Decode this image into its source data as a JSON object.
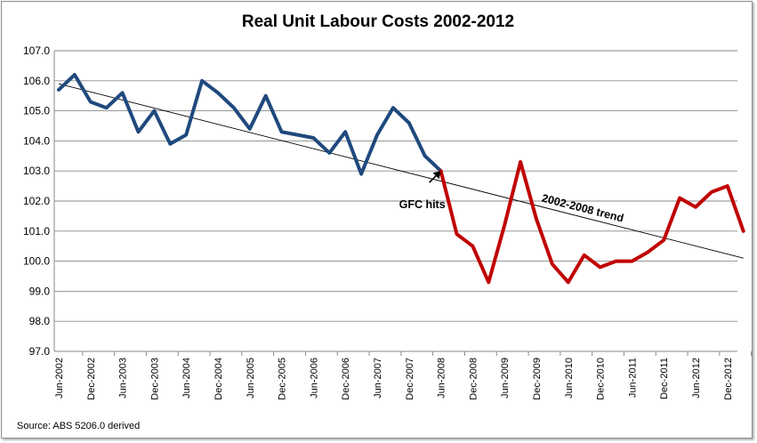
{
  "chart_data": {
    "type": "line",
    "title": "Real Unit Labour Costs 2002-2012",
    "xlabel": "",
    "ylabel": "",
    "ylim": [
      97.0,
      107.0
    ],
    "yticks": [
      "97.0",
      "98.0",
      "99.0",
      "100.0",
      "101.0",
      "102.0",
      "103.0",
      "104.0",
      "105.0",
      "106.0",
      "107.0"
    ],
    "grid": "horizontal",
    "x_tick_labels": [
      "Jun-2002",
      "Dec-2002",
      "Jun-2003",
      "Dec-2003",
      "Jun-2004",
      "Dec-2004",
      "Jun-2005",
      "Dec-2005",
      "Jun-2006",
      "Dec-2006",
      "Jun-2007",
      "Dec-2007",
      "Jun-2008",
      "Dec-2008",
      "Jun-2009",
      "Dec-2009",
      "Jun-2010",
      "Dec-2010",
      "Jun-2011",
      "Dec-2011",
      "Jun-2012",
      "Dec-2012"
    ],
    "series": [
      {
        "color": "#1f497d",
        "x_start_quarter": 0,
        "values": [
          105.7,
          106.2,
          105.3,
          105.1,
          105.6,
          104.3,
          105.0,
          103.9,
          104.2,
          106.0,
          105.6,
          105.1,
          104.4,
          105.5,
          104.3,
          104.2,
          104.1,
          103.6,
          104.3,
          102.9,
          104.2,
          105.1,
          104.6,
          103.5,
          103.0
        ]
      },
      {
        "color": "#c00000",
        "x_start_quarter": 24,
        "values": [
          103.0,
          100.9,
          100.5,
          99.3,
          101.2,
          103.3,
          101.4,
          99.9,
          99.3,
          100.2,
          99.8,
          100.0,
          100.0,
          100.3,
          100.7,
          102.1,
          101.8,
          102.3,
          102.5,
          101.0
        ]
      }
    ],
    "trend_line": {
      "color": "#000000",
      "from": {
        "quarter": 0,
        "value": 105.9
      },
      "to": {
        "quarter": 43,
        "value": 100.1
      }
    },
    "annotations": [
      {
        "text": "GFC hits",
        "points_to": {
          "quarter": 24,
          "value": 103.0
        }
      },
      {
        "text": "2002-2008 trend"
      }
    ],
    "source": "Source: ABS 5206.0 derived"
  }
}
